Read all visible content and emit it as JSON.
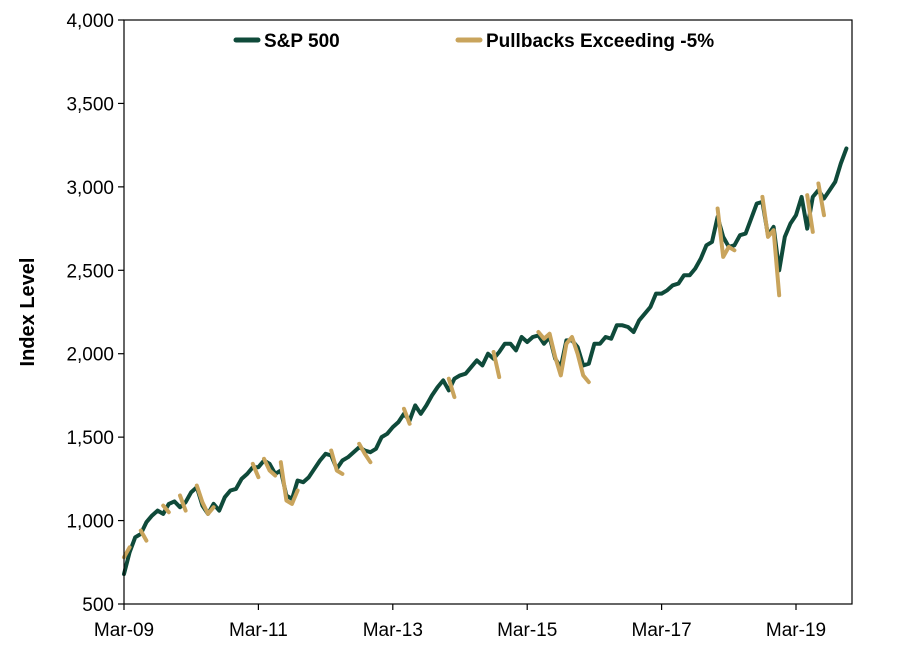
{
  "chart_data": {
    "type": "line",
    "ylabel": "Index Level",
    "xlabel": "",
    "title": "",
    "ylim": [
      500,
      4000
    ],
    "yticks": [
      500,
      1000,
      1500,
      2000,
      2500,
      3000,
      3500,
      4000
    ],
    "ytick_labels": [
      "500",
      "1,000",
      "1,500",
      "2,000",
      "2,500",
      "3,000",
      "3,500",
      "4,000"
    ],
    "xlim": [
      "2009-03",
      "2020-01"
    ],
    "xticks": [
      "2009-03",
      "2011-03",
      "2013-03",
      "2015-03",
      "2017-03",
      "2019-03"
    ],
    "xtick_labels": [
      "Mar-09",
      "Mar-11",
      "Mar-13",
      "Mar-15",
      "Mar-17",
      "Mar-19"
    ],
    "grid": false,
    "legend_position": "top",
    "colors": {
      "sp500": "#0f4a3a",
      "pullback": "#c9a45c"
    },
    "series": [
      {
        "name": "S&P 500",
        "x": [
          "2009-03",
          "2009-04",
          "2009-05",
          "2009-06",
          "2009-07",
          "2009-08",
          "2009-09",
          "2009-10",
          "2009-11",
          "2009-12",
          "2010-01",
          "2010-02",
          "2010-03",
          "2010-04",
          "2010-05",
          "2010-06",
          "2010-07",
          "2010-08",
          "2010-09",
          "2010-10",
          "2010-11",
          "2010-12",
          "2011-01",
          "2011-02",
          "2011-03",
          "2011-04",
          "2011-05",
          "2011-06",
          "2011-07",
          "2011-08",
          "2011-09",
          "2011-10",
          "2011-11",
          "2011-12",
          "2012-01",
          "2012-02",
          "2012-03",
          "2012-04",
          "2012-05",
          "2012-06",
          "2012-07",
          "2012-08",
          "2012-09",
          "2012-10",
          "2012-11",
          "2012-12",
          "2013-01",
          "2013-02",
          "2013-03",
          "2013-04",
          "2013-05",
          "2013-06",
          "2013-07",
          "2013-08",
          "2013-09",
          "2013-10",
          "2013-11",
          "2013-12",
          "2014-01",
          "2014-02",
          "2014-03",
          "2014-04",
          "2014-05",
          "2014-06",
          "2014-07",
          "2014-08",
          "2014-09",
          "2014-10",
          "2014-11",
          "2014-12",
          "2015-01",
          "2015-02",
          "2015-03",
          "2015-04",
          "2015-05",
          "2015-06",
          "2015-07",
          "2015-08",
          "2015-09",
          "2015-10",
          "2015-11",
          "2015-12",
          "2016-01",
          "2016-02",
          "2016-03",
          "2016-04",
          "2016-05",
          "2016-06",
          "2016-07",
          "2016-08",
          "2016-09",
          "2016-10",
          "2016-11",
          "2016-12",
          "2017-01",
          "2017-02",
          "2017-03",
          "2017-04",
          "2017-05",
          "2017-06",
          "2017-07",
          "2017-08",
          "2017-09",
          "2017-10",
          "2017-11",
          "2017-12",
          "2018-01",
          "2018-02",
          "2018-03",
          "2018-04",
          "2018-05",
          "2018-06",
          "2018-07",
          "2018-08",
          "2018-09",
          "2018-10",
          "2018-11",
          "2018-12",
          "2019-01",
          "2019-02",
          "2019-03",
          "2019-04",
          "2019-05",
          "2019-06",
          "2019-07",
          "2019-08",
          "2019-09",
          "2019-10",
          "2019-11",
          "2019-12"
        ],
        "values": [
          680,
          810,
          900,
          920,
          990,
          1030,
          1060,
          1040,
          1100,
          1115,
          1080,
          1110,
          1170,
          1200,
          1090,
          1040,
          1100,
          1060,
          1140,
          1180,
          1190,
          1250,
          1280,
          1320,
          1320,
          1360,
          1340,
          1280,
          1300,
          1150,
          1130,
          1240,
          1230,
          1260,
          1310,
          1360,
          1400,
          1390,
          1310,
          1360,
          1380,
          1410,
          1440,
          1420,
          1410,
          1430,
          1500,
          1520,
          1560,
          1590,
          1640,
          1600,
          1690,
          1640,
          1690,
          1750,
          1800,
          1840,
          1780,
          1850,
          1870,
          1880,
          1920,
          1960,
          1930,
          2000,
          1970,
          2010,
          2060,
          2060,
          2020,
          2100,
          2070,
          2100,
          2110,
          2060,
          2100,
          1970,
          1920,
          2080,
          2080,
          2040,
          1930,
          1940,
          2060,
          2060,
          2100,
          2090,
          2170,
          2170,
          2160,
          2130,
          2200,
          2240,
          2280,
          2360,
          2360,
          2380,
          2410,
          2420,
          2470,
          2470,
          2510,
          2570,
          2650,
          2670,
          2820,
          2700,
          2640,
          2650,
          2710,
          2720,
          2810,
          2900,
          2910,
          2710,
          2760,
          2500,
          2700,
          2780,
          2830,
          2940,
          2750,
          2940,
          2980,
          2930,
          2980,
          3030,
          3140,
          3230
        ]
      },
      {
        "name": "Pullbacks Exceeding -5%",
        "segments": [
          {
            "x": [
              "2009-03",
              "2009-04"
            ],
            "values": [
              780,
              840
            ]
          },
          {
            "x": [
              "2009-06",
              "2009-07"
            ],
            "values": [
              940,
              880
            ]
          },
          {
            "x": [
              "2009-10",
              "2009-11"
            ],
            "values": [
              1090,
              1050
            ]
          },
          {
            "x": [
              "2010-01",
              "2010-02"
            ],
            "values": [
              1150,
              1060
            ]
          },
          {
            "x": [
              "2010-04",
              "2010-05",
              "2010-06",
              "2010-07"
            ],
            "values": [
              1210,
              1110,
              1040,
              1080
            ]
          },
          {
            "x": [
              "2011-02",
              "2011-03"
            ],
            "values": [
              1340,
              1260
            ]
          },
          {
            "x": [
              "2011-04",
              "2011-05",
              "2011-06"
            ],
            "values": [
              1370,
              1300,
              1270
            ]
          },
          {
            "x": [
              "2011-07",
              "2011-08",
              "2011-09",
              "2011-10"
            ],
            "values": [
              1350,
              1120,
              1100,
              1180
            ]
          },
          {
            "x": [
              "2012-04",
              "2012-05",
              "2012-06"
            ],
            "values": [
              1420,
              1300,
              1280
            ]
          },
          {
            "x": [
              "2012-09",
              "2012-10",
              "2012-11"
            ],
            "values": [
              1460,
              1400,
              1350
            ]
          },
          {
            "x": [
              "2013-05",
              "2013-06"
            ],
            "values": [
              1670,
              1580
            ]
          },
          {
            "x": [
              "2014-01",
              "2014-02"
            ],
            "values": [
              1850,
              1740
            ]
          },
          {
            "x": [
              "2014-09",
              "2014-10"
            ],
            "values": [
              2010,
              1860
            ]
          },
          {
            "x": [
              "2015-05",
              "2015-06",
              "2015-07",
              "2015-08",
              "2015-09",
              "2015-10",
              "2015-11",
              "2015-12",
              "2016-01",
              "2016-02"
            ],
            "values": [
              2130,
              2090,
              2120,
              1980,
              1870,
              2060,
              2100,
              2000,
              1870,
              1830
            ]
          },
          {
            "x": [
              "2018-01",
              "2018-02",
              "2018-03",
              "2018-04"
            ],
            "values": [
              2870,
              2580,
              2640,
              2620
            ]
          },
          {
            "x": [
              "2018-09",
              "2018-10",
              "2018-11",
              "2018-12"
            ],
            "values": [
              2940,
              2700,
              2740,
              2350
            ]
          },
          {
            "x": [
              "2019-05",
              "2019-06"
            ],
            "values": [
              2950,
              2730
            ]
          },
          {
            "x": [
              "2019-07",
              "2019-08"
            ],
            "values": [
              3020,
              2830
            ]
          }
        ]
      }
    ]
  }
}
